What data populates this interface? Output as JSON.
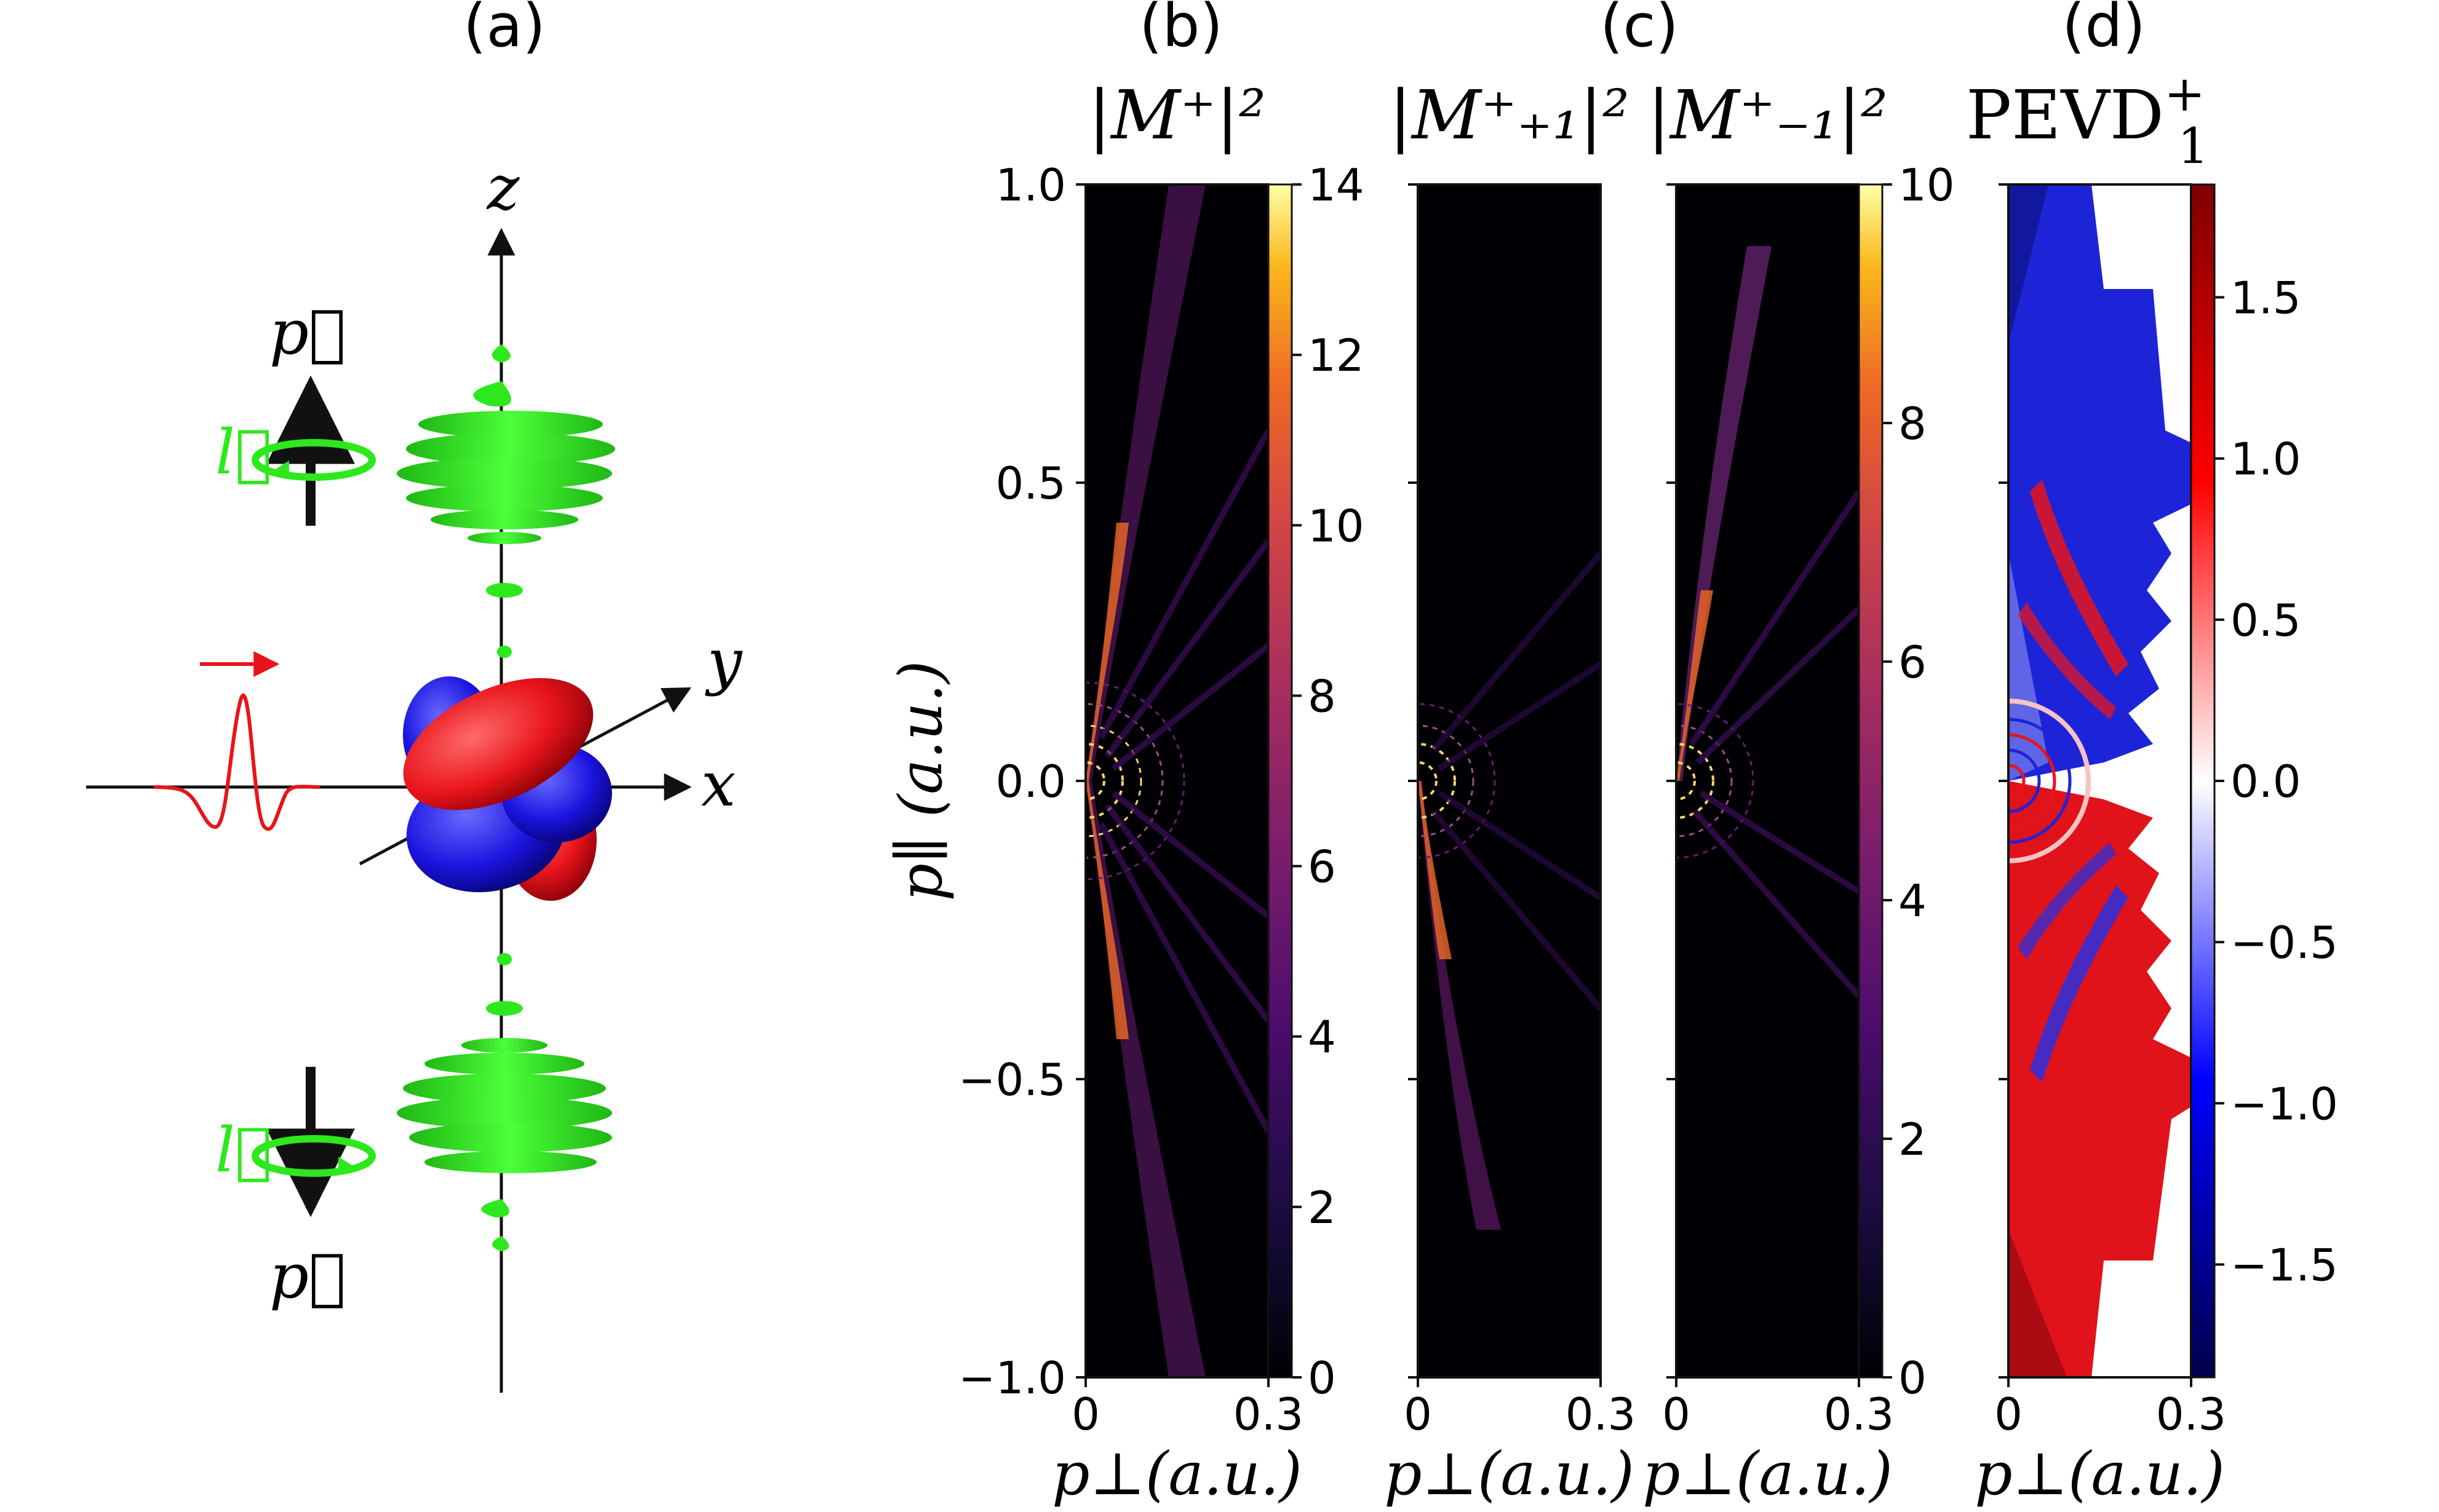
{
  "panel_labels": [
    "(a)",
    "(b)",
    "(c)",
    "(d)"
  ],
  "schematic": {
    "axis_z": "z",
    "axis_x": "x",
    "axis_y": "y",
    "momentum_symbol": "p⃗",
    "orbital_symbol": "l⃗",
    "colors": {
      "lobe_positive": "#e8141b",
      "lobe_negative": "#1b14e0",
      "emission": "#2ee81e",
      "pulse": "#e8141b",
      "arrow": "#111111"
    }
  },
  "chart_data": [
    {
      "type": "heatmap",
      "id": "b",
      "title": "|M⁺|²",
      "xlabel": "p⊥(a.u.)",
      "ylabel": "p∥ (a.u.)",
      "xlim": [
        0,
        0.3
      ],
      "ylim": [
        -1.0,
        1.0
      ],
      "xticks": [
        "0",
        "0.3"
      ],
      "yticks": [
        "1.0",
        "0.5",
        "0.0",
        "−0.5",
        "−1.0"
      ],
      "colormap": "inferno",
      "colorbar": {
        "min": 0,
        "max": 14,
        "ticks": [
          "0",
          "2",
          "4",
          "6",
          "8",
          "10",
          "12",
          "14"
        ]
      }
    },
    {
      "type": "heatmap",
      "id": "c1",
      "title": "|M⁺₊₁|²",
      "xlabel": "p⊥(a.u.)",
      "xlim": [
        0,
        0.3
      ],
      "ylim": [
        -1.0,
        1.0
      ],
      "xticks": [
        "0",
        "0.3"
      ],
      "colormap": "inferno"
    },
    {
      "type": "heatmap",
      "id": "c2",
      "title": "|M⁺₋₁|²",
      "xlabel": "p⊥(a.u.)",
      "xlim": [
        0,
        0.3
      ],
      "ylim": [
        -1.0,
        1.0
      ],
      "xticks": [
        "0",
        "0.3"
      ],
      "colormap": "inferno",
      "colorbar": {
        "min": 0,
        "max": 10,
        "ticks": [
          "0",
          "2",
          "4",
          "6",
          "8",
          "10"
        ]
      }
    },
    {
      "type": "heatmap",
      "id": "d",
      "title": "PEVD",
      "title_sup": "+",
      "title_sub": "1",
      "xlabel": "p⊥(a.u.)",
      "xlim": [
        0,
        0.3
      ],
      "ylim": [
        -1.0,
        1.0
      ],
      "xticks": [
        "0",
        "0.3"
      ],
      "colormap": "seismic",
      "colorbar": {
        "min": -1.85,
        "max": 1.85,
        "ticks": [
          "1.5",
          "1.0",
          "0.5",
          "0.0",
          "−0.5",
          "−1.0",
          "−1.5"
        ]
      }
    }
  ]
}
